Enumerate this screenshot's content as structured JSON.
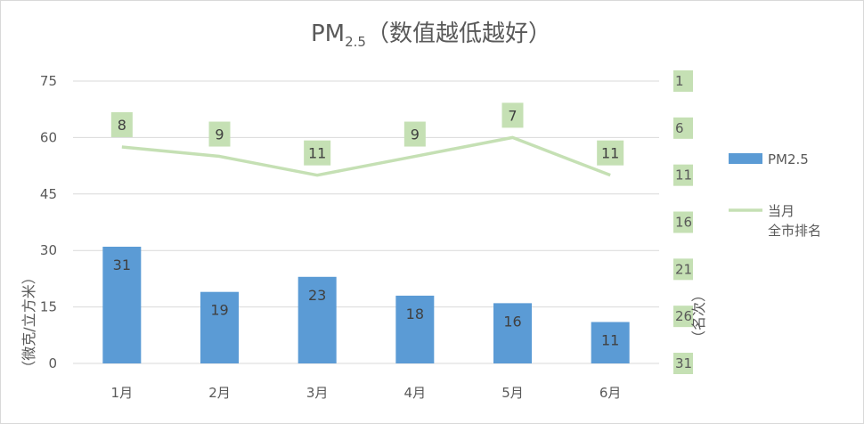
{
  "chart_data": {
    "type": "bar+line",
    "title": {
      "main": "PM",
      "subscript": "2.5",
      "suffix": "（数值越低越好）"
    },
    "categories": [
      "1月",
      "2月",
      "3月",
      "4月",
      "5月",
      "6月"
    ],
    "series": [
      {
        "name": "PM2.5",
        "kind": "bar",
        "axis": "left",
        "values": [
          31,
          19,
          23,
          18,
          16,
          11
        ],
        "color": "#5b9bd5"
      },
      {
        "name": "当月全市排名",
        "name_lines": [
          "当月",
          "全市排名"
        ],
        "kind": "line",
        "axis": "right",
        "values": [
          8,
          9,
          11,
          9,
          7,
          11
        ],
        "color": "#c5e0b4"
      }
    ],
    "left_axis": {
      "title": "（微克/立方米）",
      "min": 0,
      "max": 75,
      "ticks": [
        "0",
        "15",
        "30",
        "45",
        "60",
        "75"
      ]
    },
    "right_axis": {
      "title": "（名次）",
      "min": 1,
      "max": 31,
      "reversed": true,
      "ticks": [
        "1",
        "6",
        "11",
        "16",
        "21",
        "26",
        "31"
      ]
    },
    "grid": true,
    "legend_position": "right"
  }
}
